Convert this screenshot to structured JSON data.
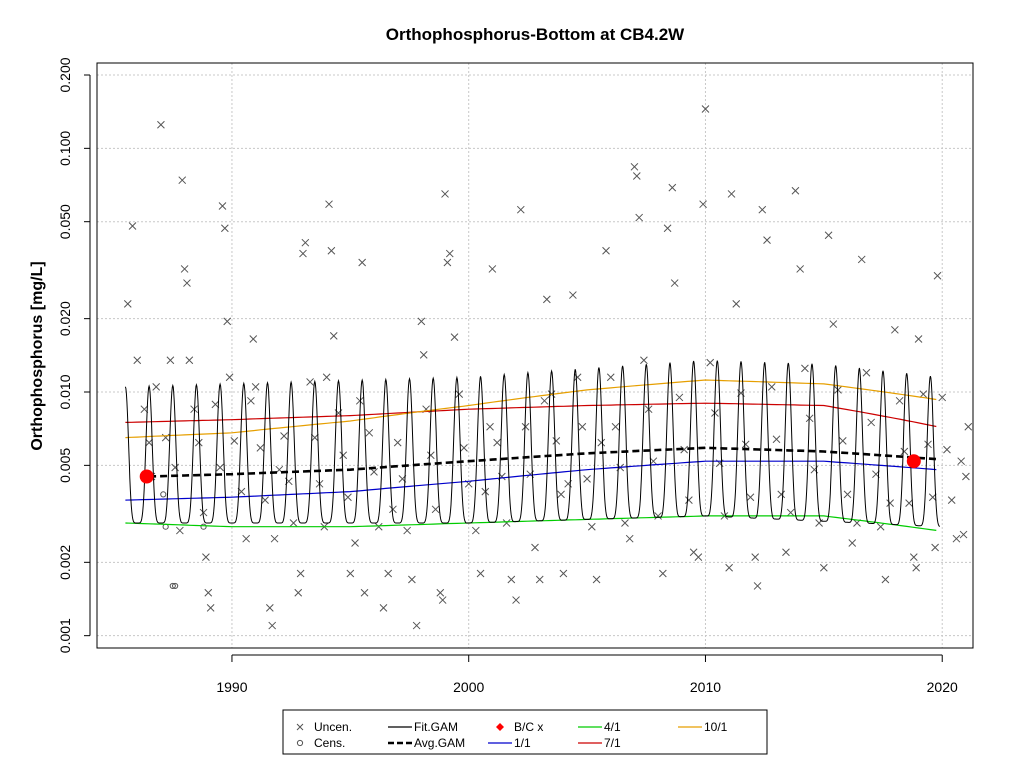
{
  "chart_data": {
    "type": "scatter",
    "title": "Orthophosphorus-Bottom at CB4.2W",
    "xlabel": "",
    "ylabel": "Orthophosphorus [mg/L]",
    "xlim": [
      1984.3,
      2021.3
    ],
    "ylim": [
      0.00089,
      0.224
    ],
    "y_scale": "log",
    "grid": true,
    "x_ticks": [
      1990,
      2000,
      2010,
      2020
    ],
    "x_tick_labels": [
      "1990",
      "2000",
      "2010",
      "2020"
    ],
    "y_ticks": [
      0.001,
      0.002,
      0.005,
      0.01,
      0.02,
      0.05,
      0.1,
      0.2
    ],
    "y_tick_labels": [
      "0.001",
      "0.002",
      "0.005",
      "0.010",
      "0.020",
      "0.050",
      "0.100",
      "0.200"
    ],
    "legend_position": "bottom",
    "legend": [
      {
        "label": "Uncen.",
        "symbol": "x",
        "color": "#555555"
      },
      {
        "label": "Cens.",
        "symbol": "circle",
        "color": "#555555"
      },
      {
        "label": "Fit.GAM",
        "symbol": "line",
        "color": "#000000"
      },
      {
        "label": "Avg.GAM",
        "symbol": "dashed",
        "color": "#000000"
      },
      {
        "label": "B/C x",
        "symbol": "diamond",
        "color": "#ff0000"
      },
      {
        "label": "1/1",
        "symbol": "line",
        "color": "#0000cc"
      },
      {
        "label": "4/1",
        "symbol": "line",
        "color": "#00cc00"
      },
      {
        "label": "7/1",
        "symbol": "line",
        "color": "#cc0000"
      },
      {
        "label": "10/1",
        "symbol": "line",
        "color": "#e69f00"
      }
    ],
    "series": [
      {
        "name": "Uncen.",
        "type": "scatter",
        "marker": "x",
        "color": "#555555",
        "points": [
          [
            1985.6,
            0.023
          ],
          [
            1985.8,
            0.048
          ],
          [
            1986.0,
            0.0135
          ],
          [
            1986.3,
            0.0085
          ],
          [
            1986.5,
            0.0062
          ],
          [
            1986.6,
            0.0045
          ],
          [
            1986.8,
            0.0105
          ],
          [
            1987.0,
            0.125
          ],
          [
            1987.2,
            0.0065
          ],
          [
            1987.4,
            0.0135
          ],
          [
            1987.6,
            0.0049
          ],
          [
            1987.8,
            0.0027
          ],
          [
            1987.9,
            0.074
          ],
          [
            1988.0,
            0.032
          ],
          [
            1988.1,
            0.028
          ],
          [
            1988.2,
            0.0135
          ],
          [
            1988.4,
            0.0085
          ],
          [
            1988.6,
            0.0062
          ],
          [
            1988.8,
            0.0032
          ],
          [
            1988.9,
            0.0021
          ],
          [
            1989.0,
            0.0015
          ],
          [
            1989.1,
            0.0013
          ],
          [
            1989.3,
            0.0089
          ],
          [
            1989.5,
            0.0049
          ],
          [
            1989.6,
            0.058
          ],
          [
            1989.7,
            0.047
          ],
          [
            1989.8,
            0.0195
          ],
          [
            1989.9,
            0.0115
          ],
          [
            1990.1,
            0.0063
          ],
          [
            1990.4,
            0.0039
          ],
          [
            1990.6,
            0.0025
          ],
          [
            1990.8,
            0.0092
          ],
          [
            1990.9,
            0.0165
          ],
          [
            1991.0,
            0.0105
          ],
          [
            1991.2,
            0.0059
          ],
          [
            1991.4,
            0.0036
          ],
          [
            1991.6,
            0.0013
          ],
          [
            1991.7,
            0.0011
          ],
          [
            1991.8,
            0.0025
          ],
          [
            1992.0,
            0.0048
          ],
          [
            1992.2,
            0.0066
          ],
          [
            1992.4,
            0.0043
          ],
          [
            1992.6,
            0.0029
          ],
          [
            1992.8,
            0.0015
          ],
          [
            1992.9,
            0.0018
          ],
          [
            1993.0,
            0.037
          ],
          [
            1993.1,
            0.041
          ],
          [
            1993.3,
            0.011
          ],
          [
            1993.5,
            0.0065
          ],
          [
            1993.7,
            0.0042
          ],
          [
            1993.9,
            0.0028
          ],
          [
            1994.0,
            0.0115
          ],
          [
            1994.1,
            0.059
          ],
          [
            1994.2,
            0.038
          ],
          [
            1994.3,
            0.017
          ],
          [
            1994.5,
            0.0082
          ],
          [
            1994.7,
            0.0055
          ],
          [
            1994.9,
            0.0037
          ],
          [
            1995.0,
            0.0018
          ],
          [
            1995.2,
            0.0024
          ],
          [
            1995.4,
            0.0092
          ],
          [
            1995.5,
            0.034
          ],
          [
            1995.6,
            0.0015
          ],
          [
            1995.8,
            0.0068
          ],
          [
            1996.0,
            0.0047
          ],
          [
            1996.2,
            0.0028
          ],
          [
            1996.4,
            0.0013
          ],
          [
            1996.6,
            0.0018
          ],
          [
            1996.8,
            0.0033
          ],
          [
            1997.0,
            0.0062
          ],
          [
            1997.2,
            0.0044
          ],
          [
            1997.4,
            0.0027
          ],
          [
            1997.6,
            0.0017
          ],
          [
            1997.8,
            0.0011
          ],
          [
            1998.0,
            0.0195
          ],
          [
            1998.1,
            0.0142
          ],
          [
            1998.2,
            0.0085
          ],
          [
            1998.4,
            0.0055
          ],
          [
            1998.6,
            0.0033
          ],
          [
            1998.8,
            0.0015
          ],
          [
            1998.9,
            0.0014
          ],
          [
            1999.0,
            0.065
          ],
          [
            1999.1,
            0.034
          ],
          [
            1999.2,
            0.037
          ],
          [
            1999.4,
            0.0168
          ],
          [
            1999.6,
            0.0098
          ],
          [
            1999.8,
            0.0059
          ],
          [
            2000.0,
            0.0042
          ],
          [
            2000.3,
            0.0027
          ],
          [
            2000.5,
            0.0018
          ],
          [
            2000.7,
            0.0039
          ],
          [
            2000.9,
            0.0072
          ],
          [
            2001.0,
            0.032
          ],
          [
            2001.2,
            0.0062
          ],
          [
            2001.4,
            0.0045
          ],
          [
            2001.6,
            0.0029
          ],
          [
            2001.8,
            0.0017
          ],
          [
            2002.0,
            0.0014
          ],
          [
            2002.2,
            0.056
          ],
          [
            2002.4,
            0.0072
          ],
          [
            2002.6,
            0.0046
          ],
          [
            2002.8,
            0.0023
          ],
          [
            2003.0,
            0.0017
          ],
          [
            2003.2,
            0.0092
          ],
          [
            2003.3,
            0.024
          ],
          [
            2003.5,
            0.0098
          ],
          [
            2003.7,
            0.0063
          ],
          [
            2003.9,
            0.0038
          ],
          [
            2004.0,
            0.0018
          ],
          [
            2004.2,
            0.0042
          ],
          [
            2004.4,
            0.025
          ],
          [
            2004.6,
            0.0115
          ],
          [
            2004.8,
            0.0072
          ],
          [
            2005.0,
            0.0044
          ],
          [
            2005.2,
            0.0028
          ],
          [
            2005.4,
            0.0017
          ],
          [
            2005.6,
            0.0062
          ],
          [
            2005.8,
            0.038
          ],
          [
            2006.0,
            0.0115
          ],
          [
            2006.2,
            0.0072
          ],
          [
            2006.4,
            0.0049
          ],
          [
            2006.6,
            0.0029
          ],
          [
            2006.8,
            0.0025
          ],
          [
            2007.0,
            0.084
          ],
          [
            2007.1,
            0.077
          ],
          [
            2007.2,
            0.052
          ],
          [
            2007.4,
            0.0135
          ],
          [
            2007.6,
            0.0085
          ],
          [
            2007.8,
            0.0052
          ],
          [
            2008.0,
            0.0031
          ],
          [
            2008.2,
            0.0018
          ],
          [
            2008.4,
            0.047
          ],
          [
            2008.6,
            0.069
          ],
          [
            2008.7,
            0.028
          ],
          [
            2008.9,
            0.0095
          ],
          [
            2009.1,
            0.0058
          ],
          [
            2009.3,
            0.0036
          ],
          [
            2009.5,
            0.0022
          ],
          [
            2009.7,
            0.0021
          ],
          [
            2009.9,
            0.059
          ],
          [
            2010.0,
            0.145
          ],
          [
            2010.2,
            0.0132
          ],
          [
            2010.4,
            0.0082
          ],
          [
            2010.6,
            0.0051
          ],
          [
            2010.8,
            0.0031
          ],
          [
            2011.0,
            0.0019
          ],
          [
            2011.1,
            0.065
          ],
          [
            2011.3,
            0.023
          ],
          [
            2011.5,
            0.0099
          ],
          [
            2011.7,
            0.0061
          ],
          [
            2011.9,
            0.0037
          ],
          [
            2012.1,
            0.0021
          ],
          [
            2012.2,
            0.0016
          ],
          [
            2012.4,
            0.056
          ],
          [
            2012.6,
            0.042
          ],
          [
            2012.8,
            0.0105
          ],
          [
            2013.0,
            0.0064
          ],
          [
            2013.2,
            0.0038
          ],
          [
            2013.4,
            0.0022
          ],
          [
            2013.6,
            0.0032
          ],
          [
            2013.8,
            0.067
          ],
          [
            2014.0,
            0.032
          ],
          [
            2014.2,
            0.0125
          ],
          [
            2014.4,
            0.0078
          ],
          [
            2014.6,
            0.0048
          ],
          [
            2014.8,
            0.0029
          ],
          [
            2015.0,
            0.0019
          ],
          [
            2015.2,
            0.044
          ],
          [
            2015.4,
            0.019
          ],
          [
            2015.6,
            0.0102
          ],
          [
            2015.8,
            0.0063
          ],
          [
            2016.0,
            0.0038
          ],
          [
            2016.2,
            0.0024
          ],
          [
            2016.4,
            0.0029
          ],
          [
            2016.6,
            0.035
          ],
          [
            2016.8,
            0.012
          ],
          [
            2017.0,
            0.0075
          ],
          [
            2017.2,
            0.0046
          ],
          [
            2017.4,
            0.0028
          ],
          [
            2017.6,
            0.0017
          ],
          [
            2017.8,
            0.0035
          ],
          [
            2018.0,
            0.018
          ],
          [
            2018.2,
            0.0092
          ],
          [
            2018.4,
            0.0057
          ],
          [
            2018.6,
            0.0035
          ],
          [
            2018.8,
            0.0021
          ],
          [
            2018.9,
            0.0019
          ],
          [
            2019.0,
            0.0165
          ],
          [
            2019.2,
            0.0098
          ],
          [
            2019.4,
            0.0061
          ],
          [
            2019.6,
            0.0037
          ],
          [
            2019.7,
            0.0023
          ],
          [
            2019.8,
            0.03
          ],
          [
            2020.0,
            0.0095
          ],
          [
            2020.2,
            0.0058
          ],
          [
            2020.4,
            0.0036
          ],
          [
            2020.6,
            0.0025
          ],
          [
            2020.8,
            0.0052
          ],
          [
            2020.9,
            0.0026
          ],
          [
            2021.0,
            0.0045
          ],
          [
            2021.1,
            0.0072
          ]
        ]
      },
      {
        "name": "Cens.",
        "type": "scatter",
        "marker": "circle",
        "color": "#555555",
        "points": [
          [
            1986.4,
            0.0045
          ],
          [
            1987.1,
            0.0038
          ],
          [
            1987.2,
            0.0028
          ],
          [
            1987.5,
            0.0016
          ],
          [
            1987.6,
            0.0016
          ],
          [
            1988.8,
            0.0028
          ]
        ]
      },
      {
        "name": "1/1",
        "type": "line",
        "color": "#0000cc",
        "x": [
          1985.5,
          1990,
          1995,
          2000,
          2005,
          2010,
          2015,
          2019.8
        ],
        "y": [
          0.0036,
          0.0037,
          0.0039,
          0.0043,
          0.0048,
          0.0052,
          0.0052,
          0.0048
        ]
      },
      {
        "name": "4/1",
        "type": "line",
        "color": "#00cc00",
        "x": [
          1985.5,
          1990,
          1995,
          2000,
          2005,
          2010,
          2015,
          2019.8
        ],
        "y": [
          0.0029,
          0.0028,
          0.0028,
          0.0029,
          0.003,
          0.0031,
          0.0031,
          0.0027
        ]
      },
      {
        "name": "7/1",
        "type": "line",
        "color": "#cc0000",
        "x": [
          1985.5,
          1990,
          1995,
          2000,
          2005,
          2010,
          2015,
          2019.8
        ],
        "y": [
          0.0075,
          0.0077,
          0.008,
          0.0085,
          0.0088,
          0.009,
          0.0088,
          0.0072
        ]
      },
      {
        "name": "10/1",
        "type": "line",
        "color": "#e69f00",
        "x": [
          1985.5,
          1990,
          1995,
          2000,
          2005,
          2010,
          2015,
          2019.8
        ],
        "y": [
          0.0065,
          0.0068,
          0.0076,
          0.0088,
          0.0102,
          0.0112,
          0.0108,
          0.0093
        ]
      },
      {
        "name": "Avg.GAM",
        "type": "line",
        "dashed": true,
        "color": "#000000",
        "x": [
          1986.5,
          1990,
          1995,
          2000,
          2005,
          2010,
          2015,
          2019.8
        ],
        "y": [
          0.0045,
          0.0046,
          0.0048,
          0.0052,
          0.0056,
          0.0059,
          0.0057,
          0.0053
        ]
      },
      {
        "name": "Fit.GAM",
        "type": "seasonal",
        "color": "#000000",
        "start": 1985.5,
        "end": 2019.9,
        "low_t": [
          1985.5,
          2000,
          2010,
          2019.9
        ],
        "low_y": [
          0.0029,
          0.0029,
          0.0031,
          0.0028
        ],
        "high_t": [
          1985.5,
          2000,
          2010,
          2015,
          2019.9
        ],
        "high_y": [
          0.0105,
          0.0115,
          0.0135,
          0.013,
          0.0115
        ]
      },
      {
        "name": "B/C x",
        "type": "scatter",
        "marker": "dot",
        "color": "#ff0000",
        "points": [
          [
            1986.4,
            0.0045
          ],
          [
            2018.8,
            0.0052
          ]
        ]
      }
    ]
  }
}
